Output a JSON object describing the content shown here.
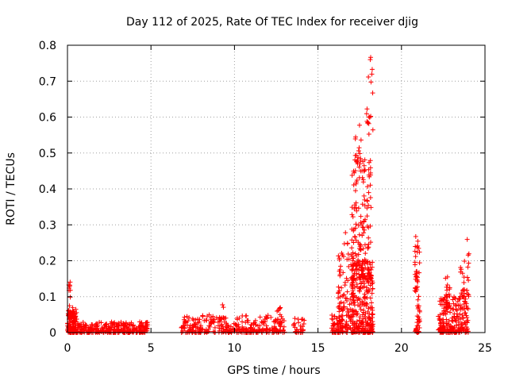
{
  "chart_data": {
    "type": "scatter",
    "title": "Day 112 of 2025, Rate Of TEC Index for receiver djig",
    "xlabel": "GPS time / hours",
    "ylabel": "ROTI / TECUs",
    "xlim": [
      0,
      25
    ],
    "ylim": [
      0,
      0.8
    ],
    "xticks": [
      "0",
      "5",
      "10",
      "15",
      "20",
      "25"
    ],
    "yticks": [
      "0",
      "0.1",
      "0.2",
      "0.3",
      "0.4",
      "0.5",
      "0.6",
      "0.7",
      "0.8"
    ],
    "grid": true,
    "marker": "+",
    "series_color": "#ff0000",
    "clusters": [
      {
        "x": [
          0.0,
          0.5
        ],
        "y": [
          0.0,
          0.06
        ],
        "n": 120
      },
      {
        "x": [
          0.05,
          0.2
        ],
        "y": [
          0.05,
          0.15
        ],
        "n": 16
      },
      {
        "x": [
          0.3,
          0.6
        ],
        "y": [
          0.03,
          0.07
        ],
        "n": 14
      },
      {
        "x": [
          0.5,
          4.8
        ],
        "y": [
          0.0,
          0.03
        ],
        "n": 300
      },
      {
        "x": [
          4.5,
          4.8
        ],
        "y": [
          0.01,
          0.03
        ],
        "n": 14
      },
      {
        "x": [
          6.8,
          13.0
        ],
        "y": [
          0.0,
          0.05
        ],
        "n": 320
      },
      {
        "x": [
          9.2,
          9.5
        ],
        "y": [
          0.04,
          0.08
        ],
        "n": 6
      },
      {
        "x": [
          12.5,
          12.8
        ],
        "y": [
          0.05,
          0.07
        ],
        "n": 6
      },
      {
        "x": [
          13.5,
          14.2
        ],
        "y": [
          0.0,
          0.04
        ],
        "n": 30
      },
      {
        "x": [
          15.8,
          16.5
        ],
        "y": [
          0.0,
          0.05
        ],
        "n": 60
      },
      {
        "x": [
          16.2,
          17.2
        ],
        "y": [
          0.0,
          0.28
        ],
        "n": 120
      },
      {
        "x": [
          17.0,
          18.3
        ],
        "y": [
          0.0,
          0.2
        ],
        "n": 260
      },
      {
        "x": [
          17.0,
          18.2
        ],
        "y": [
          0.15,
          0.5
        ],
        "n": 150
      },
      {
        "x": [
          17.2,
          17.8
        ],
        "y": [
          0.45,
          0.62
        ],
        "n": 20
      },
      {
        "x": [
          17.9,
          18.3
        ],
        "y": [
          0.55,
          0.77
        ],
        "n": 18
      },
      {
        "x": [
          20.8,
          21.1
        ],
        "y": [
          0.0,
          0.27
        ],
        "n": 70
      },
      {
        "x": [
          22.2,
          24.0
        ],
        "y": [
          0.0,
          0.1
        ],
        "n": 230
      },
      {
        "x": [
          22.6,
          22.9
        ],
        "y": [
          0.1,
          0.16
        ],
        "n": 12
      },
      {
        "x": [
          23.5,
          23.8
        ],
        "y": [
          0.1,
          0.2
        ],
        "n": 18
      },
      {
        "x": [
          23.9,
          24.05
        ],
        "y": [
          0.1,
          0.28
        ],
        "n": 12
      }
    ]
  }
}
